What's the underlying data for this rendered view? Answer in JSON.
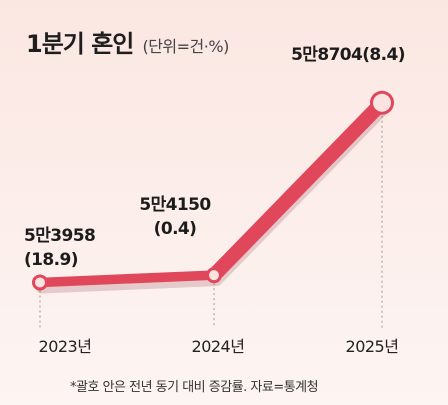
{
  "title": "1분기 혼인",
  "unit": "(단위=건·%)",
  "footnote": "*괄호 안은 전년 동기 대비 증감률. 자료=통계청",
  "colors": {
    "line": "#e0475a",
    "line_dark": "#c8324a",
    "marker_fill": "#fbe3e1",
    "background": "#fbe9e5"
  },
  "chart_data": {
    "type": "line",
    "title": "1분기 혼인",
    "categories": [
      "2023년",
      "2024년",
      "2025년"
    ],
    "values": [
      53958,
      54150,
      58704
    ],
    "labels": [
      "5만3958",
      "5만4150",
      "5만8704"
    ],
    "changes": [
      "(18.9)",
      "(0.4)",
      "(8.4)"
    ],
    "ylim": [
      53600,
      59200
    ]
  }
}
